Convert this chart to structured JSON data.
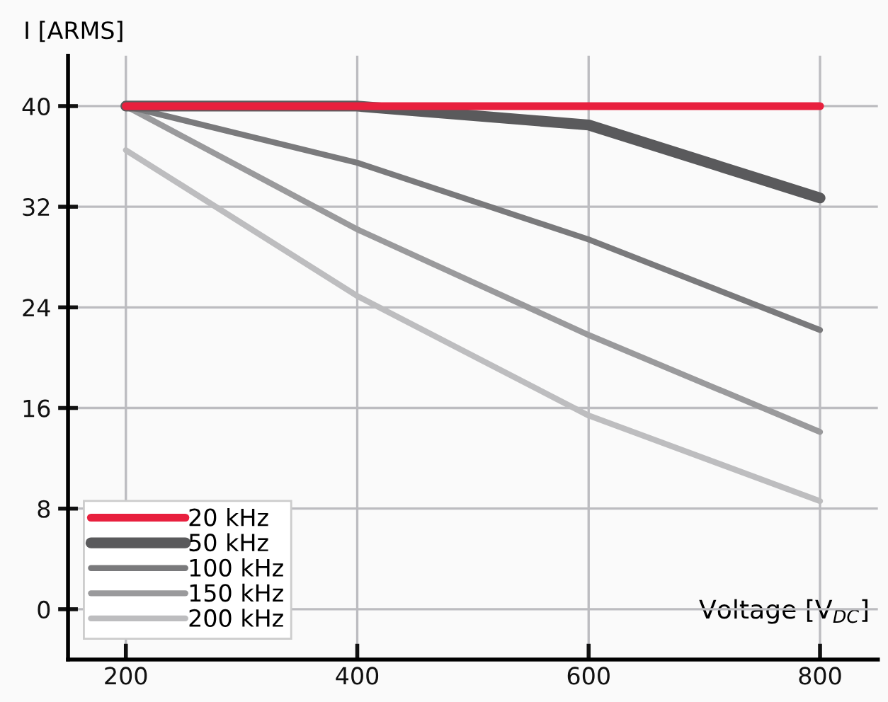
{
  "chart_data": {
    "type": "line",
    "xlabel": "Voltage [V$_{DC}$]",
    "ylabel": "I [ARMS]",
    "x": [
      200,
      400,
      600,
      800
    ],
    "series": [
      {
        "name": "20 kHz",
        "color": "#e8203e",
        "values": [
          40,
          40,
          40,
          40
        ]
      },
      {
        "name": "50 kHz",
        "color": "#5a5a5c",
        "values": [
          40,
          40,
          38.5,
          32.7
        ]
      },
      {
        "name": "100 kHz",
        "color": "#7a7a7c",
        "values": [
          40,
          35.5,
          29.4,
          22.2
        ]
      },
      {
        "name": "150 kHz",
        "color": "#9a9a9c",
        "values": [
          40,
          30.2,
          21.8,
          14.1
        ]
      },
      {
        "name": "200 kHz",
        "color": "#bdbdbf",
        "values": [
          36.5,
          24.9,
          15.4,
          8.6
        ]
      }
    ],
    "xlim": [
      150,
      850
    ],
    "ylim": [
      -4,
      44
    ],
    "xticks": [
      200,
      400,
      600,
      800
    ],
    "yticks": [
      0,
      8,
      16,
      24,
      32,
      40
    ],
    "grid": true,
    "legend": "bottom left",
    "marker": "none",
    "line_style": "solid"
  }
}
